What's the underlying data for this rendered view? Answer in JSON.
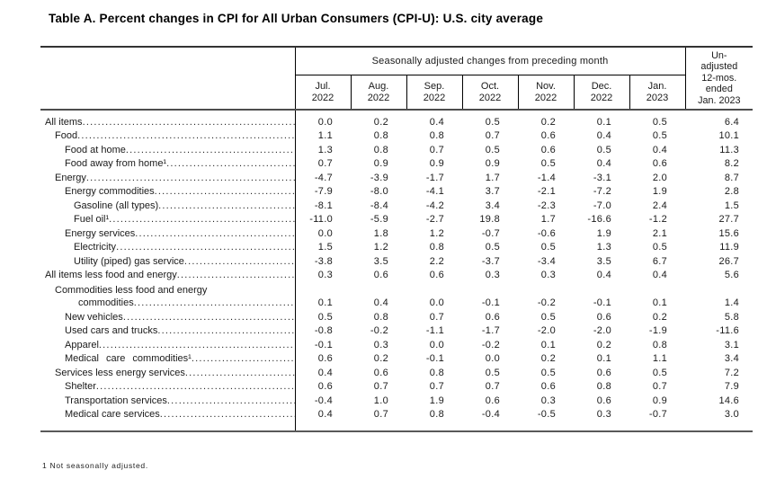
{
  "title": "Table A. Percent changes in CPI for All Urban Consumers (CPI-U): U.S. city average",
  "table": {
    "group_header": "Seasonally adjusted changes from preceding month",
    "columns": [
      {
        "month": "Jul.",
        "year": "2022"
      },
      {
        "month": "Aug.",
        "year": "2022"
      },
      {
        "month": "Sep.",
        "year": "2022"
      },
      {
        "month": "Oct.",
        "year": "2022"
      },
      {
        "month": "Nov.",
        "year": "2022"
      },
      {
        "month": "Dec.",
        "year": "2022"
      },
      {
        "month": "Jan.",
        "year": "2023"
      }
    ],
    "unadjusted_header_lines": [
      "Un-",
      "adjusted",
      "12-mos.",
      "ended",
      "Jan. 2023"
    ],
    "rows": [
      {
        "label": "All items",
        "indent": 0,
        "values": [
          "0.0",
          "0.2",
          "0.4",
          "0.5",
          "0.2",
          "0.1",
          "0.5",
          "6.4"
        ]
      },
      {
        "label": "Food",
        "indent": 1,
        "values": [
          "1.1",
          "0.8",
          "0.8",
          "0.7",
          "0.6",
          "0.4",
          "0.5",
          "10.1"
        ]
      },
      {
        "label": "Food at home",
        "indent": 2,
        "values": [
          "1.3",
          "0.8",
          "0.7",
          "0.5",
          "0.6",
          "0.5",
          "0.4",
          "11.3"
        ]
      },
      {
        "label": "Food away from home¹",
        "indent": 2,
        "values": [
          "0.7",
          "0.9",
          "0.9",
          "0.9",
          "0.5",
          "0.4",
          "0.6",
          "8.2"
        ]
      },
      {
        "label": "Energy",
        "indent": 1,
        "values": [
          "-4.7",
          "-3.9",
          "-1.7",
          "1.7",
          "-1.4",
          "-3.1",
          "2.0",
          "8.7"
        ]
      },
      {
        "label": "Energy commodities",
        "indent": 2,
        "values": [
          "-7.9",
          "-8.0",
          "-4.1",
          "3.7",
          "-2.1",
          "-7.2",
          "1.9",
          "2.8"
        ]
      },
      {
        "label": "Gasoline (all types)",
        "indent": 3,
        "values": [
          "-8.1",
          "-8.4",
          "-4.2",
          "3.4",
          "-2.3",
          "-7.0",
          "2.4",
          "1.5"
        ]
      },
      {
        "label": "Fuel oil¹",
        "indent": 3,
        "values": [
          "-11.0",
          "-5.9",
          "-2.7",
          "19.8",
          "1.7",
          "-16.6",
          "-1.2",
          "27.7"
        ]
      },
      {
        "label": "Energy services",
        "indent": 2,
        "values": [
          "0.0",
          "1.8",
          "1.2",
          "-0.7",
          "-0.6",
          "1.9",
          "2.1",
          "15.6"
        ]
      },
      {
        "label": "Electricity",
        "indent": 3,
        "values": [
          "1.5",
          "1.2",
          "0.8",
          "0.5",
          "0.5",
          "1.3",
          "0.5",
          "11.9"
        ]
      },
      {
        "label": "Utility (piped) gas service",
        "indent": 3,
        "values": [
          "-3.8",
          "3.5",
          "2.2",
          "-3.7",
          "-3.4",
          "3.5",
          "6.7",
          "26.7"
        ]
      },
      {
        "label": "All items less food and energy",
        "indent": 0,
        "values": [
          "0.3",
          "0.6",
          "0.6",
          "0.3",
          "0.3",
          "0.4",
          "0.4",
          "5.6"
        ]
      },
      {
        "label": "Commodities less food and energy",
        "label2": "commodities",
        "indent": 1,
        "values": [
          "0.1",
          "0.4",
          "0.0",
          "-0.1",
          "-0.2",
          "-0.1",
          "0.1",
          "1.4"
        ]
      },
      {
        "label": "New vehicles",
        "indent": 2,
        "values": [
          "0.5",
          "0.8",
          "0.7",
          "0.6",
          "0.5",
          "0.6",
          "0.2",
          "5.8"
        ]
      },
      {
        "label": "Used cars and trucks",
        "indent": 2,
        "values": [
          "-0.8",
          "-0.2",
          "-1.1",
          "-1.7",
          "-2.0",
          "-2.0",
          "-1.9",
          "-11.6"
        ]
      },
      {
        "label": "Apparel",
        "indent": 2,
        "values": [
          "-0.1",
          "0.3",
          "0.0",
          "-0.2",
          "0.1",
          "0.2",
          "0.8",
          "3.1"
        ]
      },
      {
        "label": "Medical care commodities¹",
        "indent": 2,
        "wide": true,
        "values": [
          "0.6",
          "0.2",
          "-0.1",
          "0.0",
          "0.2",
          "0.1",
          "1.1",
          "3.4"
        ]
      },
      {
        "label": "Services less energy services",
        "indent": 1,
        "values": [
          "0.4",
          "0.6",
          "0.8",
          "0.5",
          "0.5",
          "0.6",
          "0.5",
          "7.2"
        ]
      },
      {
        "label": "Shelter",
        "indent": 2,
        "values": [
          "0.6",
          "0.7",
          "0.7",
          "0.7",
          "0.6",
          "0.8",
          "0.7",
          "7.9"
        ]
      },
      {
        "label": "Transportation services",
        "indent": 2,
        "values": [
          "-0.4",
          "1.0",
          "1.9",
          "0.6",
          "0.3",
          "0.6",
          "0.9",
          "14.6"
        ]
      },
      {
        "label": "Medical care services",
        "indent": 2,
        "values": [
          "0.4",
          "0.7",
          "0.8",
          "-0.4",
          "-0.5",
          "0.3",
          "-0.7",
          "3.0"
        ]
      }
    ]
  },
  "footnote": "1 Not seasonally adjusted."
}
